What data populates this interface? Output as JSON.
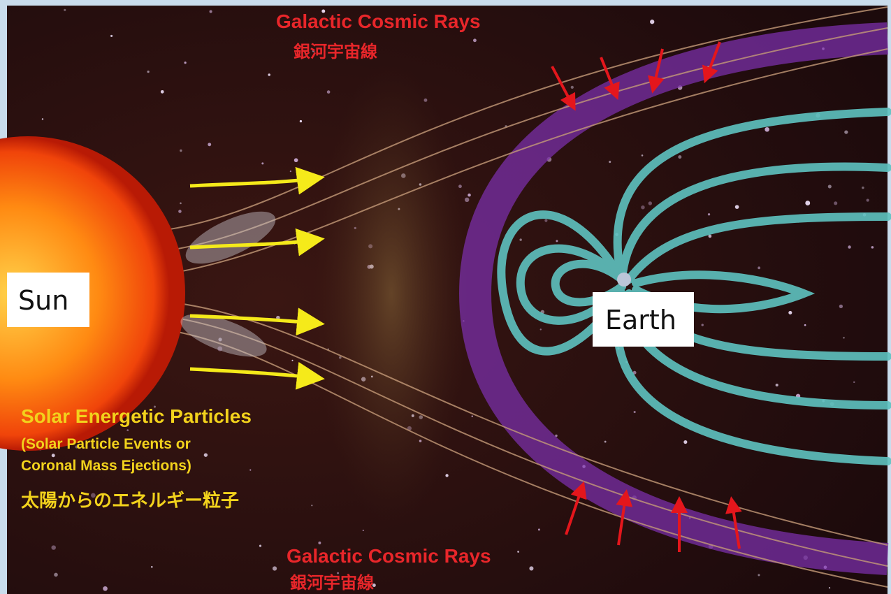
{
  "top_rays": {
    "title": "Galactic Cosmic Rays",
    "japanese": "銀河宇宙線"
  },
  "solar_particles": {
    "title": "Solar Energetic Particles",
    "line1": "(Solar Particle Events or",
    "line2": "Coronal Mass Ejections)",
    "japanese": "太陽からのエネルギー粒子"
  },
  "bottom_rays": {
    "title": "Galactic Cosmic Rays",
    "japanese": "銀河宇宙線"
  },
  "sun": "Sun",
  "earth": "Earth"
}
